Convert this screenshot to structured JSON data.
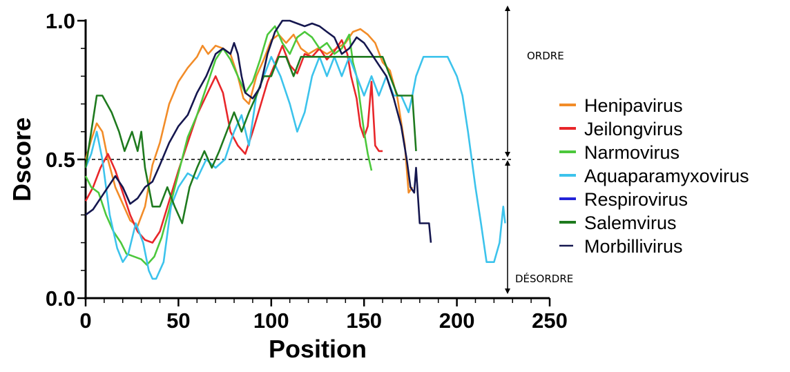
{
  "chart_data": {
    "type": "line",
    "xlabel": "Position",
    "ylabel": "Dscore",
    "xlim": [
      0,
      250
    ],
    "ylim": [
      0,
      1
    ],
    "x_ticks": [
      0,
      50,
      100,
      150,
      200,
      250
    ],
    "x_tick_labels": [
      "0",
      "50",
      "100",
      "150",
      "200",
      "250"
    ],
    "y_ticks": [
      0,
      0.5,
      1
    ],
    "y_tick_labels": [
      "0.0",
      "0.5",
      "1.0"
    ],
    "threshold": 0.5,
    "legend_position": "right",
    "annotations": {
      "upper": "ORDRE",
      "lower": "DÉSORDRE"
    },
    "series": [
      {
        "name": "Henipavirus",
        "color": "#F28C28",
        "x": [
          0,
          3,
          6,
          9,
          12,
          16,
          20,
          24,
          28,
          32,
          36,
          40,
          45,
          50,
          55,
          60,
          63,
          66,
          70,
          74,
          78,
          82,
          85,
          88,
          92,
          96,
          100,
          104,
          108,
          112,
          116,
          120,
          125,
          130,
          135,
          140,
          144,
          148,
          152,
          156,
          160,
          164,
          168,
          172,
          174,
          176
        ],
        "y": [
          0.5,
          0.57,
          0.63,
          0.6,
          0.5,
          0.4,
          0.34,
          0.28,
          0.26,
          0.33,
          0.48,
          0.56,
          0.7,
          0.78,
          0.83,
          0.87,
          0.91,
          0.88,
          0.91,
          0.9,
          0.88,
          0.8,
          0.72,
          0.7,
          0.8,
          0.86,
          0.93,
          0.95,
          0.92,
          0.95,
          0.9,
          0.88,
          0.9,
          0.88,
          0.9,
          0.92,
          0.96,
          0.97,
          0.95,
          0.92,
          0.85,
          0.82,
          0.72,
          0.55,
          0.38,
          0.4
        ]
      },
      {
        "name": "Jeilongvirus",
        "color": "#E8262A",
        "x": [
          0,
          4,
          8,
          12,
          16,
          20,
          24,
          28,
          32,
          36,
          40,
          45,
          50,
          55,
          60,
          65,
          70,
          74,
          78,
          82,
          86,
          90,
          94,
          98,
          103,
          106,
          110,
          114,
          118,
          122,
          126,
          130,
          134,
          138,
          141,
          143,
          146,
          148,
          150,
          152,
          154,
          156,
          158,
          160
        ],
        "y": [
          0.35,
          0.4,
          0.47,
          0.52,
          0.46,
          0.38,
          0.3,
          0.24,
          0.21,
          0.2,
          0.24,
          0.35,
          0.46,
          0.56,
          0.66,
          0.73,
          0.8,
          0.74,
          0.6,
          0.55,
          0.52,
          0.6,
          0.69,
          0.78,
          0.86,
          0.91,
          0.84,
          0.81,
          0.88,
          0.87,
          0.9,
          0.86,
          0.89,
          0.93,
          0.88,
          0.8,
          0.72,
          0.62,
          0.58,
          0.62,
          0.78,
          0.55,
          0.53,
          0.53
        ]
      },
      {
        "name": "Narmovirus",
        "color": "#4CC83C",
        "x": [
          0,
          3,
          7,
          11,
          15,
          19,
          22,
          26,
          30,
          33,
          37,
          41,
          45,
          50,
          55,
          60,
          65,
          70,
          74,
          78,
          82,
          86,
          90,
          94,
          98,
          102,
          106,
          110,
          114,
          118,
          122,
          126,
          130,
          134,
          138,
          142,
          144,
          146,
          148,
          150,
          152,
          154
        ],
        "y": [
          0.44,
          0.4,
          0.38,
          0.3,
          0.24,
          0.2,
          0.16,
          0.15,
          0.14,
          0.12,
          0.15,
          0.22,
          0.32,
          0.45,
          0.58,
          0.66,
          0.76,
          0.86,
          0.9,
          0.86,
          0.8,
          0.74,
          0.78,
          0.86,
          0.95,
          0.98,
          0.92,
          0.88,
          0.94,
          0.96,
          0.94,
          0.9,
          0.92,
          0.88,
          0.9,
          0.95,
          0.85,
          0.8,
          0.7,
          0.6,
          0.52,
          0.46
        ]
      },
      {
        "name": "Aquaparamyxovirus",
        "color": "#3CC3EC",
        "x": [
          0,
          3,
          6,
          9,
          13,
          17,
          20,
          23,
          27,
          31,
          34,
          36,
          38,
          42,
          46,
          50,
          55,
          60,
          65,
          70,
          75,
          80,
          84,
          88,
          92,
          96,
          100,
          105,
          110,
          114,
          118,
          122,
          126,
          130,
          134,
          138,
          142,
          146,
          150,
          154,
          158,
          162,
          166,
          170,
          174,
          176,
          178,
          182,
          185,
          190,
          195,
          200,
          203,
          206,
          210,
          213,
          216,
          220,
          223,
          225,
          226
        ],
        "y": [
          0.47,
          0.52,
          0.6,
          0.5,
          0.3,
          0.18,
          0.13,
          0.16,
          0.27,
          0.2,
          0.1,
          0.07,
          0.07,
          0.13,
          0.33,
          0.4,
          0.45,
          0.43,
          0.5,
          0.47,
          0.5,
          0.6,
          0.66,
          0.55,
          0.73,
          0.8,
          0.87,
          0.8,
          0.7,
          0.6,
          0.67,
          0.8,
          0.87,
          0.8,
          0.87,
          0.8,
          0.87,
          0.8,
          0.73,
          0.8,
          0.73,
          0.8,
          0.73,
          0.73,
          0.67,
          0.73,
          0.8,
          0.87,
          0.87,
          0.87,
          0.87,
          0.8,
          0.73,
          0.6,
          0.4,
          0.27,
          0.13,
          0.13,
          0.2,
          0.33,
          0.27
        ]
      },
      {
        "name": "Respirovirus",
        "color": "#2323D8",
        "x": [],
        "y": []
      },
      {
        "name": "Salemvirus",
        "color": "#1E7A1E",
        "x": [
          0,
          3,
          6,
          9,
          14,
          18,
          21,
          25,
          28,
          30,
          32,
          34,
          36,
          40,
          44,
          48,
          52,
          56,
          60,
          64,
          68,
          72,
          76,
          80,
          84,
          88,
          92,
          96,
          100,
          104,
          108,
          112,
          116,
          120,
          124,
          128,
          132,
          136,
          140,
          144,
          148,
          152,
          156,
          160,
          164,
          168,
          172,
          176,
          178
        ],
        "y": [
          0.47,
          0.6,
          0.73,
          0.73,
          0.67,
          0.6,
          0.53,
          0.6,
          0.53,
          0.6,
          0.47,
          0.4,
          0.33,
          0.33,
          0.4,
          0.33,
          0.27,
          0.4,
          0.47,
          0.53,
          0.47,
          0.53,
          0.6,
          0.67,
          0.6,
          0.67,
          0.73,
          0.8,
          0.8,
          0.87,
          0.87,
          0.8,
          0.87,
          0.87,
          0.87,
          0.87,
          0.87,
          0.87,
          0.87,
          0.87,
          0.87,
          0.87,
          0.87,
          0.87,
          0.8,
          0.73,
          0.73,
          0.73,
          0.53
        ]
      },
      {
        "name": "Morbillivirus",
        "color": "#15174F",
        "x": [
          0,
          4,
          8,
          12,
          16,
          20,
          24,
          28,
          32,
          36,
          40,
          45,
          50,
          55,
          60,
          65,
          70,
          74,
          78,
          80,
          82,
          84,
          86,
          90,
          94,
          98,
          102,
          106,
          110,
          114,
          118,
          122,
          126,
          130,
          134,
          138,
          142,
          146,
          150,
          154,
          158,
          162,
          166,
          170,
          173,
          175,
          177,
          178,
          180,
          183,
          185,
          186
        ],
        "y": [
          0.3,
          0.32,
          0.36,
          0.4,
          0.44,
          0.4,
          0.34,
          0.36,
          0.4,
          0.42,
          0.48,
          0.56,
          0.62,
          0.66,
          0.74,
          0.8,
          0.88,
          0.9,
          0.88,
          0.92,
          0.88,
          0.8,
          0.74,
          0.72,
          0.76,
          0.88,
          0.96,
          1.0,
          1.0,
          0.99,
          0.98,
          0.99,
          0.98,
          0.96,
          0.94,
          0.88,
          0.9,
          0.94,
          0.92,
          0.88,
          0.84,
          0.8,
          0.72,
          0.62,
          0.5,
          0.4,
          0.38,
          0.47,
          0.27,
          0.27,
          0.27,
          0.2
        ]
      }
    ]
  }
}
